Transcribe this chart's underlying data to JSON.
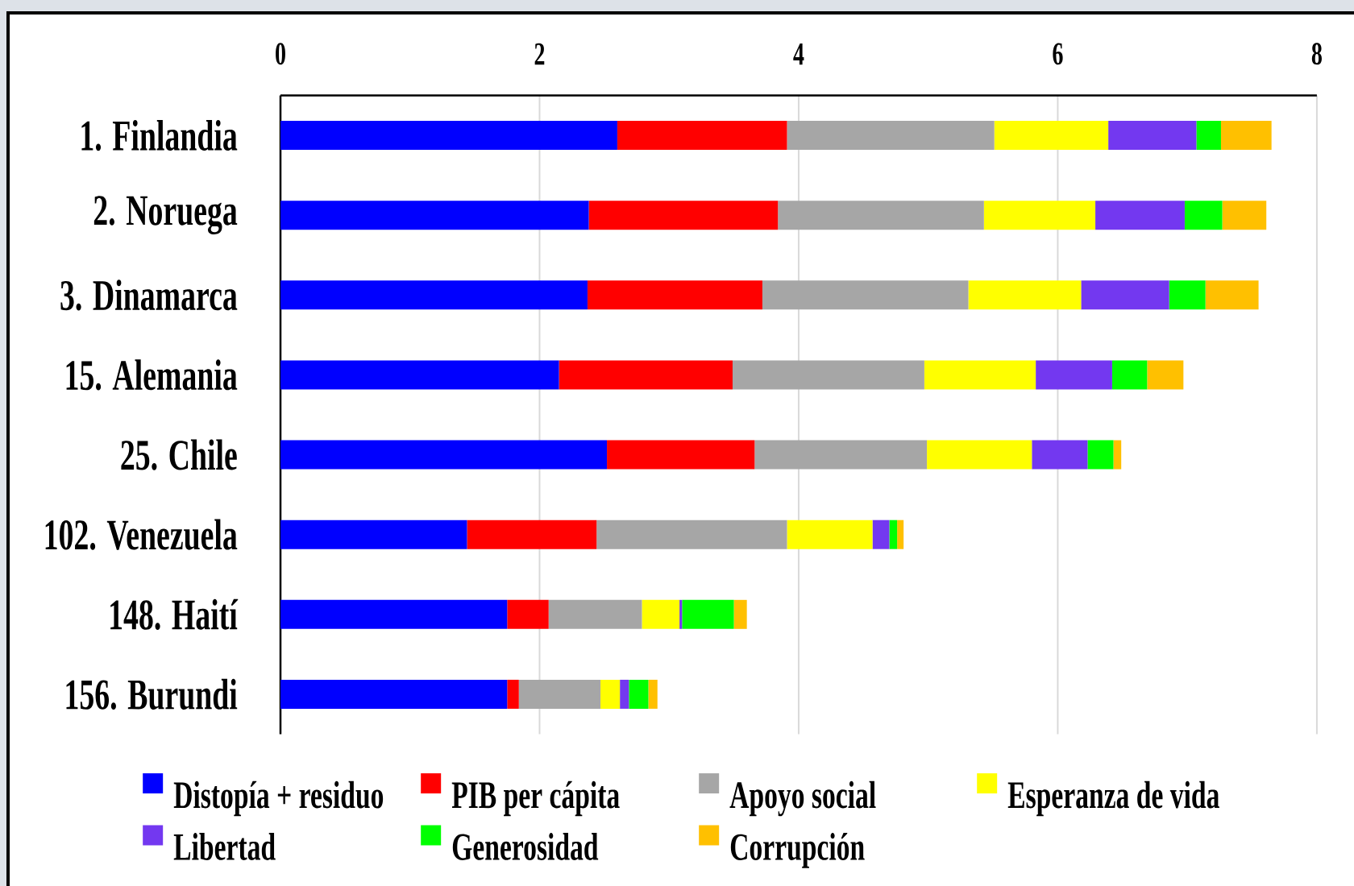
{
  "chart_data": {
    "type": "bar",
    "orientation": "horizontal",
    "stacked": true,
    "categories": [
      "1. Finlandia",
      "2. Noruega",
      "3. Dinamarca",
      "15. Alemania",
      "25. Chile",
      "102. Venezuela",
      "148. Haití",
      "156. Burundi"
    ],
    "series": [
      {
        "name": "Distopía + residuo",
        "color": "#0000ff",
        "values": [
          2.6,
          2.38,
          2.37,
          2.15,
          2.52,
          1.44,
          1.75,
          1.75
        ]
      },
      {
        "name": "PIB per cápita",
        "color": "#ff0000",
        "values": [
          1.31,
          1.46,
          1.35,
          1.34,
          1.14,
          1.0,
          0.32,
          0.09
        ]
      },
      {
        "name": "Apoyo social",
        "color": "#a6a6a6",
        "values": [
          1.6,
          1.59,
          1.59,
          1.48,
          1.33,
          1.47,
          0.72,
          0.63
        ]
      },
      {
        "name": "Esperanza de vida",
        "color": "#ffff00",
        "values": [
          0.88,
          0.86,
          0.87,
          0.86,
          0.81,
          0.66,
          0.29,
          0.15
        ]
      },
      {
        "name": "Libertad",
        "color": "#7338f0",
        "values": [
          0.68,
          0.69,
          0.68,
          0.59,
          0.43,
          0.13,
          0.02,
          0.07
        ]
      },
      {
        "name": "Generosidad",
        "color": "#00ff00",
        "values": [
          0.19,
          0.29,
          0.28,
          0.27,
          0.2,
          0.06,
          0.4,
          0.15
        ]
      },
      {
        "name": "Corrupción",
        "color": "#ffc000",
        "values": [
          0.39,
          0.34,
          0.41,
          0.28,
          0.06,
          0.05,
          0.1,
          0.07
        ]
      }
    ],
    "xlim": [
      0,
      8
    ],
    "xticks": [
      0,
      2,
      4,
      6,
      8
    ],
    "grid": "x",
    "legend": "bottom"
  }
}
